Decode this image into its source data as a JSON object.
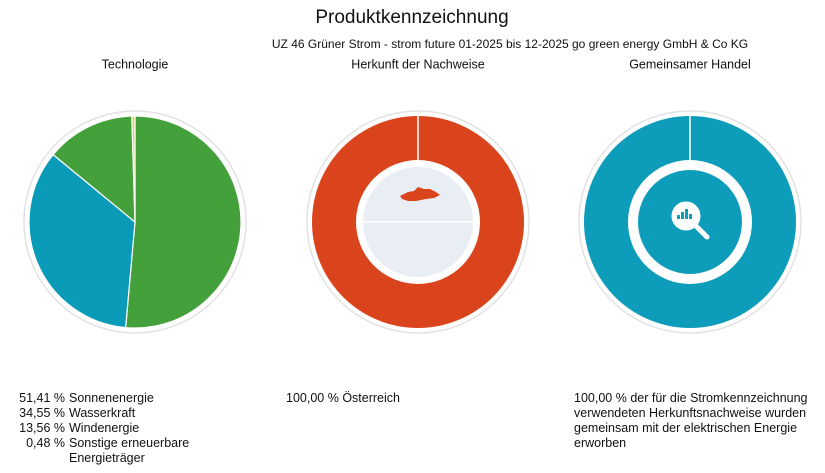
{
  "title": "Produktkennzeichnung",
  "subtitle": "UZ 46 Grüner Strom - strom future 01-2025 bis 12-2025 go green energy GmbH & Co KG",
  "chart_data": [
    {
      "type": "pie",
      "title": "Technologie",
      "categories": [
        "Sonnenenergie",
        "Wasserkraft",
        "Windenergie",
        "Sonstige erneuerbare Energieträger"
      ],
      "values": [
        51.41,
        34.55,
        13.56,
        0.48
      ],
      "value_labels": [
        "51,41 %",
        "34,55 %",
        "13,56 %",
        "0,48 %"
      ],
      "colors": [
        "#43a03a",
        "#0a9bb9",
        "#43a03a",
        "#d8d36a"
      ]
    },
    {
      "type": "donut",
      "title": "Herkunft der Nachweise",
      "categories": [
        "Österreich"
      ],
      "values": [
        100
      ],
      "value_labels": [
        "100,00 %"
      ],
      "colors": [
        "#d9441c"
      ]
    },
    {
      "type": "donut",
      "title": "Gemeinsamer Handel",
      "categories": [
        "der für die Stromkennzeichnung verwendeten Herkunftsnachweise wurden gemeinsam mit der elektrischen Energie erworben"
      ],
      "values": [
        100
      ],
      "value_labels": [
        "100,00 %"
      ],
      "colors": [
        "#0d9cb9"
      ]
    }
  ]
}
